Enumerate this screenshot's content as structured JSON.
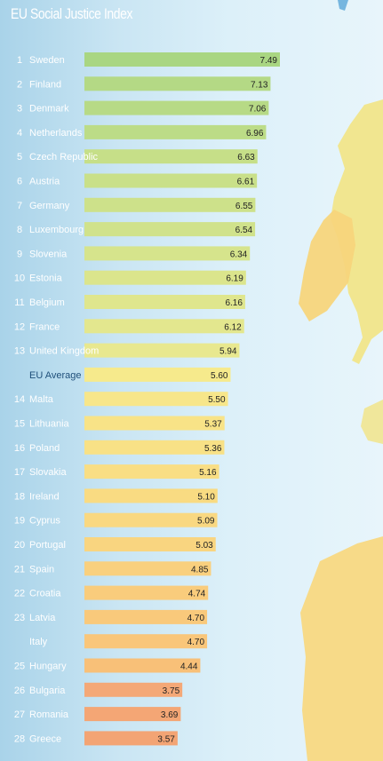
{
  "title": "EU Social Justice Index",
  "chart_data": {
    "type": "bar",
    "orientation": "horizontal",
    "title": "EU Social Justice Index",
    "xlabel": "",
    "ylabel": "",
    "xlim": [
      0,
      7.49
    ],
    "grid": false,
    "rows": [
      {
        "rank": "1",
        "name": "Sweden",
        "value": 7.49,
        "label": "7.49",
        "color": "#a9d682"
      },
      {
        "rank": "2",
        "name": "Finland",
        "value": 7.13,
        "label": "7.13",
        "color": "#b4d985"
      },
      {
        "rank": "3",
        "name": "Denmark",
        "value": 7.06,
        "label": "7.06",
        "color": "#b7da86"
      },
      {
        "rank": "4",
        "name": "Netherlands",
        "value": 6.96,
        "label": "6.96",
        "color": "#bcdc87"
      },
      {
        "rank": "5",
        "name": "Czech Republic",
        "value": 6.63,
        "label": "6.63",
        "color": "#c6df88"
      },
      {
        "rank": "6",
        "name": "Austria",
        "value": 6.61,
        "label": "6.61",
        "color": "#c9e089"
      },
      {
        "rank": "7",
        "name": "Germany",
        "value": 6.55,
        "label": "6.55",
        "color": "#cde18a"
      },
      {
        "rank": "8",
        "name": "Luxembourg",
        "value": 6.54,
        "label": "6.54",
        "color": "#d0e28b"
      },
      {
        "rank": "9",
        "name": "Slovenia",
        "value": 6.34,
        "label": "6.34",
        "color": "#d6e48c"
      },
      {
        "rank": "10",
        "name": "Estonia",
        "value": 6.19,
        "label": "6.19",
        "color": "#dbe58c"
      },
      {
        "rank": "11",
        "name": "Belgium",
        "value": 6.16,
        "label": "6.16",
        "color": "#dfe68d"
      },
      {
        "rank": "12",
        "name": "France",
        "value": 6.12,
        "label": "6.12",
        "color": "#e3e78e"
      },
      {
        "rank": "13",
        "name": "United Kingdom",
        "value": 5.94,
        "label": "5.94",
        "color": "#e8e88f"
      },
      {
        "rank": "",
        "name": "EU Average",
        "value": 5.6,
        "label": "5.60",
        "color": "#f6ea8c",
        "average": true
      },
      {
        "rank": "14",
        "name": "Malta",
        "value": 5.5,
        "label": "5.50",
        "color": "#f7e68a"
      },
      {
        "rank": "15",
        "name": "Lithuania",
        "value": 5.37,
        "label": "5.37",
        "color": "#f8e387"
      },
      {
        "rank": "16",
        "name": "Poland",
        "value": 5.36,
        "label": "5.36",
        "color": "#f8e186"
      },
      {
        "rank": "17",
        "name": "Slovakia",
        "value": 5.16,
        "label": "5.16",
        "color": "#f9de84"
      },
      {
        "rank": "18",
        "name": "Ireland",
        "value": 5.1,
        "label": "5.10",
        "color": "#f9db82"
      },
      {
        "rank": "19",
        "name": "Cyprus",
        "value": 5.09,
        "label": "5.09",
        "color": "#f9d881"
      },
      {
        "rank": "20",
        "name": "Portugal",
        "value": 5.03,
        "label": "5.03",
        "color": "#f9d580"
      },
      {
        "rank": "21",
        "name": "Spain",
        "value": 4.85,
        "label": "4.85",
        "color": "#f9d07e"
      },
      {
        "rank": "22",
        "name": "Croatia",
        "value": 4.74,
        "label": "4.74",
        "color": "#f9cc7c"
      },
      {
        "rank": "23",
        "name": "Latvia",
        "value": 4.7,
        "label": "4.70",
        "color": "#f9c97b"
      },
      {
        "rank": "",
        "name": "Italy",
        "value": 4.7,
        "label": "4.70",
        "color": "#f9c67a"
      },
      {
        "rank": "25",
        "name": "Hungary",
        "value": 4.44,
        "label": "4.44",
        "color": "#f8c078"
      },
      {
        "rank": "26",
        "name": "Bulgaria",
        "value": 3.75,
        "label": "3.75",
        "color": "#f4a877"
      },
      {
        "rank": "27",
        "name": "Romania",
        "value": 3.69,
        "label": "3.69",
        "color": "#f4a675"
      },
      {
        "rank": "28",
        "name": "Greece",
        "value": 3.57,
        "label": "3.57",
        "color": "#f3a474"
      }
    ]
  }
}
